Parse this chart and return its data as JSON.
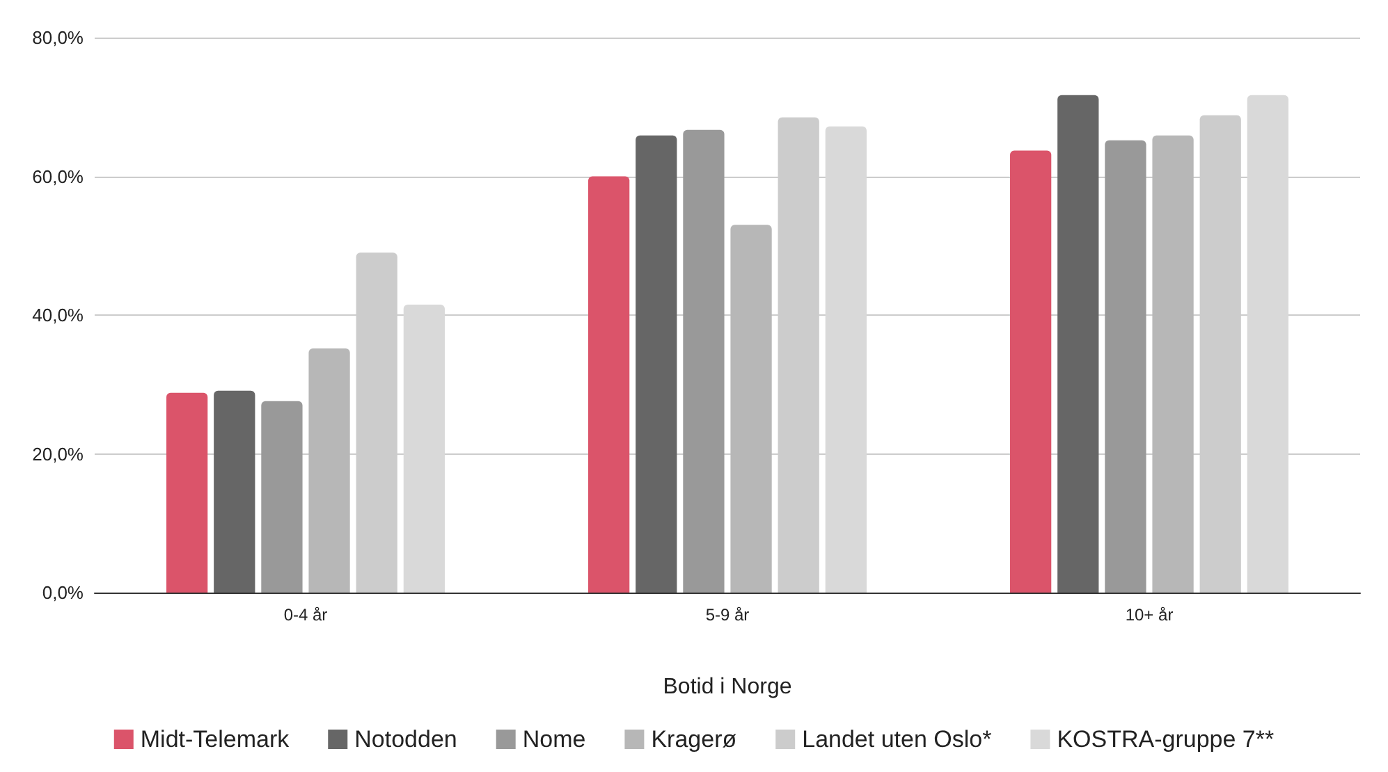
{
  "chart_data": {
    "type": "bar",
    "xlabel": "Botid i Norge",
    "categories": [
      "0-4 år",
      "5-9 år",
      "10+ år"
    ],
    "series": [
      {
        "name": "Midt-Telemark",
        "color": "#db546a",
        "values": [
          28.8,
          60.0,
          63.7
        ]
      },
      {
        "name": "Notodden",
        "color": "#666666",
        "values": [
          29.1,
          65.9,
          71.7
        ]
      },
      {
        "name": "Nome",
        "color": "#999999",
        "values": [
          27.6,
          66.7,
          65.2
        ]
      },
      {
        "name": "Kragerø",
        "color": "#b7b7b7",
        "values": [
          35.2,
          53.0,
          65.9
        ]
      },
      {
        "name": "Landet uten Oslo*",
        "color": "#cccccc",
        "values": [
          49.0,
          68.5,
          68.8
        ]
      },
      {
        "name": "KOSTRA-gruppe 7**",
        "color": "#d9d9d9",
        "values": [
          41.5,
          67.2,
          71.7
        ]
      }
    ],
    "ylim": [
      0,
      80
    ],
    "yticks": [
      {
        "value": 0,
        "label": "0,0%"
      },
      {
        "value": 20,
        "label": "20,0%"
      },
      {
        "value": 40,
        "label": "40,0%"
      },
      {
        "value": 60,
        "label": "60,0%"
      },
      {
        "value": 80,
        "label": "80,0%"
      }
    ],
    "grid": "y",
    "legend": "bottom"
  }
}
